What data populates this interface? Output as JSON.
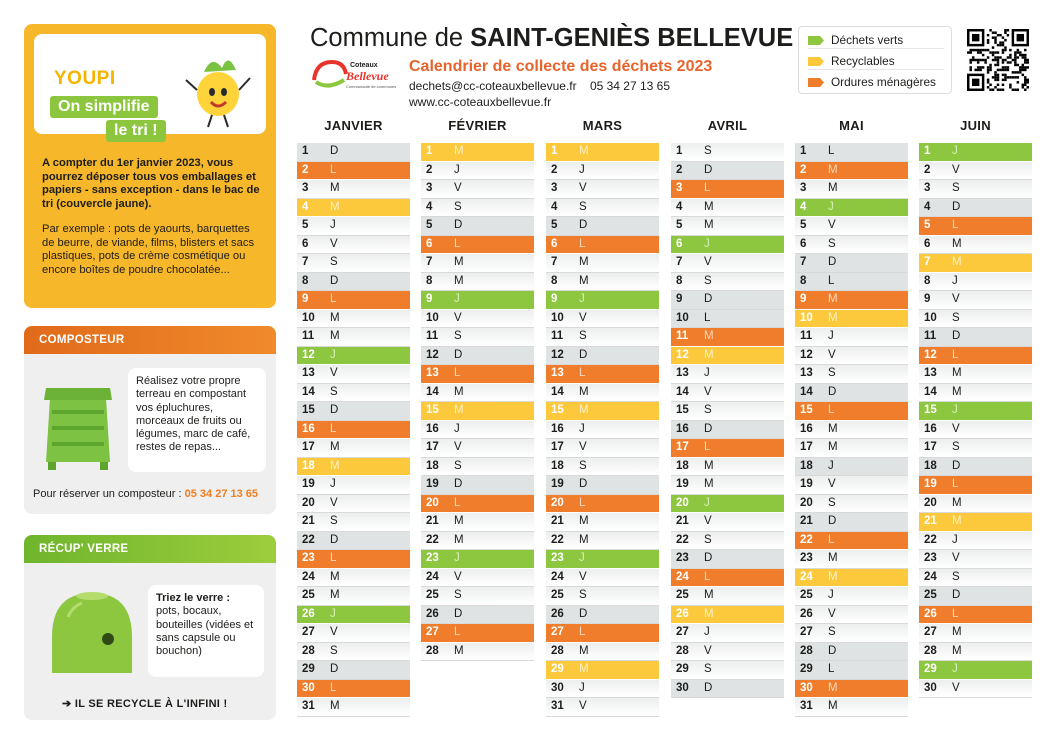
{
  "colors": {
    "verts": "#8dc63f",
    "recyclables": "#fcc83c",
    "ordures": "#ef7d2b"
  },
  "header": {
    "title_prefix": "Commune de ",
    "title_name": "SAINT-GENIÈS BELLEVUE",
    "subtitle": "Calendrier de collecte des déchets 2023",
    "contact_line": "dechets@cc-coteauxbellevue.fr    05 34 27 13 65",
    "website": "www.cc-coteauxbellevue.fr",
    "logo_text_top": "Coteaux",
    "logo_text_main": "Bellevue",
    "logo_text_sub": "Communauté de communes"
  },
  "legend": [
    {
      "label": "Déchets verts",
      "color": "#8dc63f"
    },
    {
      "label": "Recyclables",
      "color": "#fcc83c"
    },
    {
      "label": "Ordures ménagères",
      "color": "#ef7d2b"
    }
  ],
  "youpi": {
    "logo": "YOUPI",
    "line1": "On simplifie",
    "line2": "le tri !",
    "main_text": "A compter du 1er janvier 2023, vous pourrez déposer tous vos emballages et papiers - sans exception - dans le bac de tri (couvercle jaune).",
    "example_text": "Par exemple : pots de yaourts, barquettes de beurre, de viande, films, blisters et sacs plastiques, pots de crème cosmétique ou encore boîtes de poudre chocolatée..."
  },
  "composteur": {
    "title": "COMPOSTEUR",
    "text": "Réalisez votre propre terreau en compostant vos épluchures, morceaux de fruits ou légumes, marc de café, restes de repas...",
    "reserve_label": "Pour réserver un composteur : ",
    "reserve_phone": "05 34 27 13 65"
  },
  "verre": {
    "title": "RÉCUP' VERRE",
    "text_bold": "Triez le verre :",
    "text": "pots, bocaux, bouteilles (vidées et sans capsule ou bouchon)",
    "recycle": "IL SE RECYCLE À L'INFINI !"
  },
  "months": [
    {
      "name": "JANVIER",
      "days": [
        [
          "1",
          "D",
          "we"
        ],
        [
          "2",
          "L",
          "om"
        ],
        [
          "3",
          "M",
          "w"
        ],
        [
          "4",
          "M",
          "rec"
        ],
        [
          "5",
          "J",
          "w"
        ],
        [
          "6",
          "V",
          "w"
        ],
        [
          "7",
          "S",
          "w"
        ],
        [
          "8",
          "D",
          "we"
        ],
        [
          "9",
          "L",
          "om"
        ],
        [
          "10",
          "M",
          "w"
        ],
        [
          "11",
          "M",
          "w"
        ],
        [
          "12",
          "J",
          "vert"
        ],
        [
          "13",
          "V",
          "w"
        ],
        [
          "14",
          "S",
          "w"
        ],
        [
          "15",
          "D",
          "we"
        ],
        [
          "16",
          "L",
          "om"
        ],
        [
          "17",
          "M",
          "w"
        ],
        [
          "18",
          "M",
          "rec"
        ],
        [
          "19",
          "J",
          "w"
        ],
        [
          "20",
          "V",
          "w"
        ],
        [
          "21",
          "S",
          "w"
        ],
        [
          "22",
          "D",
          "we"
        ],
        [
          "23",
          "L",
          "om"
        ],
        [
          "24",
          "M",
          "w"
        ],
        [
          "25",
          "M",
          "w"
        ],
        [
          "26",
          "J",
          "vert"
        ],
        [
          "27",
          "V",
          "w"
        ],
        [
          "28",
          "S",
          "w"
        ],
        [
          "29",
          "D",
          "we"
        ],
        [
          "30",
          "L",
          "om"
        ],
        [
          "31",
          "M",
          "w"
        ]
      ]
    },
    {
      "name": "FÉVRIER",
      "days": [
        [
          "1",
          "M",
          "rec"
        ],
        [
          "2",
          "J",
          "w"
        ],
        [
          "3",
          "V",
          "w"
        ],
        [
          "4",
          "S",
          "w"
        ],
        [
          "5",
          "D",
          "we"
        ],
        [
          "6",
          "L",
          "om"
        ],
        [
          "7",
          "M",
          "w"
        ],
        [
          "8",
          "M",
          "w"
        ],
        [
          "9",
          "J",
          "vert"
        ],
        [
          "10",
          "V",
          "w"
        ],
        [
          "11",
          "S",
          "w"
        ],
        [
          "12",
          "D",
          "we"
        ],
        [
          "13",
          "L",
          "om"
        ],
        [
          "14",
          "M",
          "w"
        ],
        [
          "15",
          "M",
          "rec"
        ],
        [
          "16",
          "J",
          "w"
        ],
        [
          "17",
          "V",
          "w"
        ],
        [
          "18",
          "S",
          "w"
        ],
        [
          "19",
          "D",
          "we"
        ],
        [
          "20",
          "L",
          "om"
        ],
        [
          "21",
          "M",
          "w"
        ],
        [
          "22",
          "M",
          "w"
        ],
        [
          "23",
          "J",
          "vert"
        ],
        [
          "24",
          "V",
          "w"
        ],
        [
          "25",
          "S",
          "w"
        ],
        [
          "26",
          "D",
          "we"
        ],
        [
          "27",
          "L",
          "om"
        ],
        [
          "28",
          "M",
          "w"
        ]
      ]
    },
    {
      "name": "MARS",
      "days": [
        [
          "1",
          "M",
          "rec"
        ],
        [
          "2",
          "J",
          "w"
        ],
        [
          "3",
          "V",
          "w"
        ],
        [
          "4",
          "S",
          "w"
        ],
        [
          "5",
          "D",
          "we"
        ],
        [
          "6",
          "L",
          "om"
        ],
        [
          "7",
          "M",
          "w"
        ],
        [
          "8",
          "M",
          "w"
        ],
        [
          "9",
          "J",
          "vert"
        ],
        [
          "10",
          "V",
          "w"
        ],
        [
          "11",
          "S",
          "w"
        ],
        [
          "12",
          "D",
          "we"
        ],
        [
          "13",
          "L",
          "om"
        ],
        [
          "14",
          "M",
          "w"
        ],
        [
          "15",
          "M",
          "rec"
        ],
        [
          "16",
          "J",
          "w"
        ],
        [
          "17",
          "V",
          "w"
        ],
        [
          "18",
          "S",
          "w"
        ],
        [
          "19",
          "D",
          "we"
        ],
        [
          "20",
          "L",
          "om"
        ],
        [
          "21",
          "M",
          "w"
        ],
        [
          "22",
          "M",
          "w"
        ],
        [
          "23",
          "J",
          "vert"
        ],
        [
          "24",
          "V",
          "w"
        ],
        [
          "25",
          "S",
          "w"
        ],
        [
          "26",
          "D",
          "we"
        ],
        [
          "27",
          "L",
          "om"
        ],
        [
          "28",
          "M",
          "w"
        ],
        [
          "29",
          "M",
          "rec"
        ],
        [
          "30",
          "J",
          "w"
        ],
        [
          "31",
          "V",
          "w"
        ]
      ]
    },
    {
      "name": "AVRIL",
      "days": [
        [
          "1",
          "S",
          "w"
        ],
        [
          "2",
          "D",
          "we"
        ],
        [
          "3",
          "L",
          "om"
        ],
        [
          "4",
          "M",
          "w"
        ],
        [
          "5",
          "M",
          "w"
        ],
        [
          "6",
          "J",
          "vert"
        ],
        [
          "7",
          "V",
          "w"
        ],
        [
          "8",
          "S",
          "w"
        ],
        [
          "9",
          "D",
          "we"
        ],
        [
          "10",
          "L",
          "we"
        ],
        [
          "11",
          "M",
          "om"
        ],
        [
          "12",
          "M",
          "rec"
        ],
        [
          "13",
          "J",
          "w"
        ],
        [
          "14",
          "V",
          "w"
        ],
        [
          "15",
          "S",
          "w"
        ],
        [
          "16",
          "D",
          "we"
        ],
        [
          "17",
          "L",
          "om"
        ],
        [
          "18",
          "M",
          "w"
        ],
        [
          "19",
          "M",
          "w"
        ],
        [
          "20",
          "J",
          "vert"
        ],
        [
          "21",
          "V",
          "w"
        ],
        [
          "22",
          "S",
          "w"
        ],
        [
          "23",
          "D",
          "we"
        ],
        [
          "24",
          "L",
          "om"
        ],
        [
          "25",
          "M",
          "w"
        ],
        [
          "26",
          "M",
          "rec"
        ],
        [
          "27",
          "J",
          "w"
        ],
        [
          "28",
          "V",
          "w"
        ],
        [
          "29",
          "S",
          "w"
        ],
        [
          "30",
          "D",
          "we"
        ]
      ]
    },
    {
      "name": "MAI",
      "days": [
        [
          "1",
          "L",
          "we"
        ],
        [
          "2",
          "M",
          "om"
        ],
        [
          "3",
          "M",
          "w"
        ],
        [
          "4",
          "J",
          "vert"
        ],
        [
          "5",
          "V",
          "w"
        ],
        [
          "6",
          "S",
          "w"
        ],
        [
          "7",
          "D",
          "we"
        ],
        [
          "8",
          "L",
          "we"
        ],
        [
          "9",
          "M",
          "om"
        ],
        [
          "10",
          "M",
          "rec"
        ],
        [
          "11",
          "J",
          "w"
        ],
        [
          "12",
          "V",
          "w"
        ],
        [
          "13",
          "S",
          "w"
        ],
        [
          "14",
          "D",
          "we"
        ],
        [
          "15",
          "L",
          "om"
        ],
        [
          "16",
          "M",
          "w"
        ],
        [
          "17",
          "M",
          "w"
        ],
        [
          "18",
          "J",
          "we"
        ],
        [
          "19",
          "V",
          "w"
        ],
        [
          "20",
          "S",
          "w"
        ],
        [
          "21",
          "D",
          "we"
        ],
        [
          "22",
          "L",
          "om"
        ],
        [
          "23",
          "M",
          "w"
        ],
        [
          "24",
          "M",
          "rec"
        ],
        [
          "25",
          "J",
          "w"
        ],
        [
          "26",
          "V",
          "w"
        ],
        [
          "27",
          "S",
          "w"
        ],
        [
          "28",
          "D",
          "we"
        ],
        [
          "29",
          "L",
          "we"
        ],
        [
          "30",
          "M",
          "om"
        ],
        [
          "31",
          "M",
          "w"
        ]
      ]
    },
    {
      "name": "JUIN",
      "days": [
        [
          "1",
          "J",
          "vert"
        ],
        [
          "2",
          "V",
          "w"
        ],
        [
          "3",
          "S",
          "w"
        ],
        [
          "4",
          "D",
          "we"
        ],
        [
          "5",
          "L",
          "om"
        ],
        [
          "6",
          "M",
          "w"
        ],
        [
          "7",
          "M",
          "rec"
        ],
        [
          "8",
          "J",
          "w"
        ],
        [
          "9",
          "V",
          "w"
        ],
        [
          "10",
          "S",
          "w"
        ],
        [
          "11",
          "D",
          "we"
        ],
        [
          "12",
          "L",
          "om"
        ],
        [
          "13",
          "M",
          "w"
        ],
        [
          "14",
          "M",
          "w"
        ],
        [
          "15",
          "J",
          "vert"
        ],
        [
          "16",
          "V",
          "w"
        ],
        [
          "17",
          "S",
          "w"
        ],
        [
          "18",
          "D",
          "we"
        ],
        [
          "19",
          "L",
          "om"
        ],
        [
          "20",
          "M",
          "w"
        ],
        [
          "21",
          "M",
          "rec"
        ],
        [
          "22",
          "J",
          "w"
        ],
        [
          "23",
          "V",
          "w"
        ],
        [
          "24",
          "S",
          "w"
        ],
        [
          "25",
          "D",
          "we"
        ],
        [
          "26",
          "L",
          "om"
        ],
        [
          "27",
          "M",
          "w"
        ],
        [
          "28",
          "M",
          "w"
        ],
        [
          "29",
          "J",
          "vert"
        ],
        [
          "30",
          "V",
          "w"
        ]
      ]
    }
  ]
}
